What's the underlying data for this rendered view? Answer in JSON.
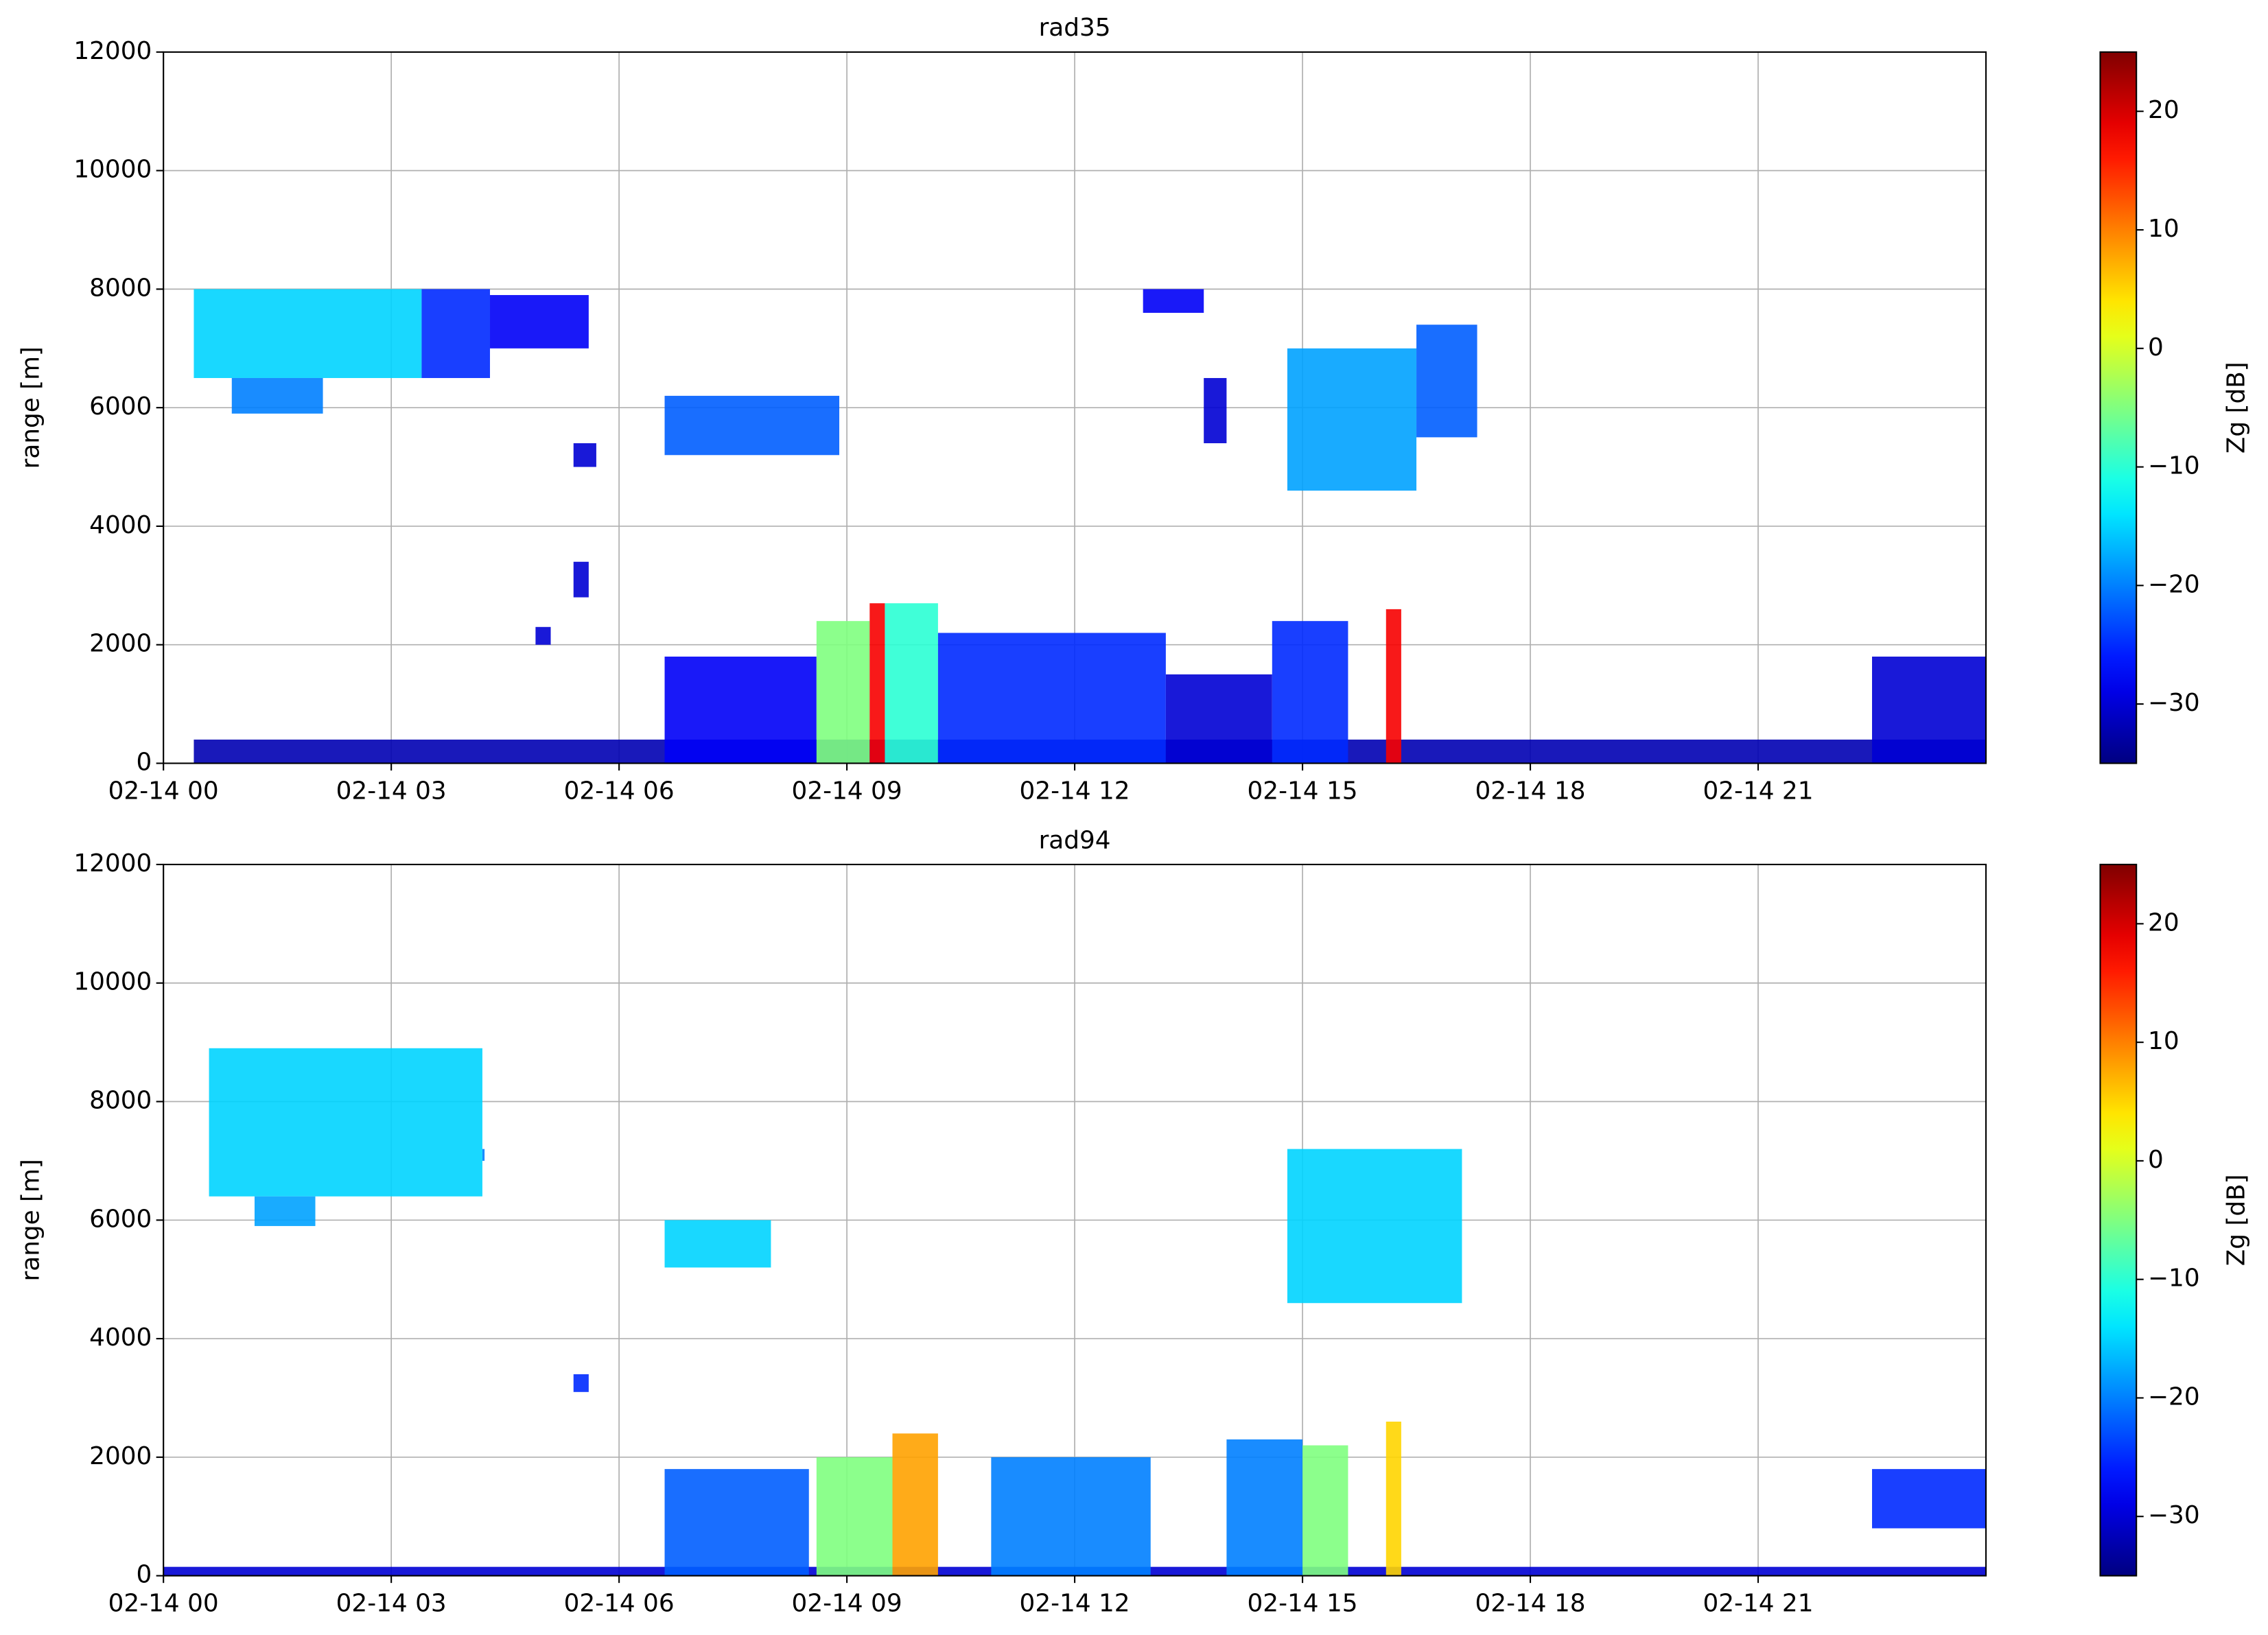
{
  "chart_data": [
    {
      "type": "heatmap",
      "title": "rad35",
      "ylabel": "range [m]",
      "colorbar_label": "Zg [dB]",
      "colormap": "jet",
      "grid": true,
      "xlim": [
        0,
        24
      ],
      "xticks": [
        {
          "value": 0,
          "label": "02-14 00"
        },
        {
          "value": 3,
          "label": "02-14 03"
        },
        {
          "value": 6,
          "label": "02-14 06"
        },
        {
          "value": 9,
          "label": "02-14 09"
        },
        {
          "value": 12,
          "label": "02-14 12"
        },
        {
          "value": 15,
          "label": "02-14 15"
        },
        {
          "value": 18,
          "label": "02-14 18"
        },
        {
          "value": 21,
          "label": "02-14 21"
        }
      ],
      "ylim": [
        0,
        12000
      ],
      "yticks": [
        0,
        2000,
        4000,
        6000,
        8000,
        10000,
        12000
      ],
      "clim": [
        -35,
        25
      ],
      "cticks": [
        {
          "value": -30,
          "label": "−30"
        },
        {
          "value": -20,
          "label": "−20"
        },
        {
          "value": -10,
          "label": "−10"
        },
        0,
        10,
        20
      ],
      "cells": [
        [
          0.4,
          24,
          0,
          400,
          -32
        ],
        [
          0.4,
          3.4,
          6500,
          8000,
          -15
        ],
        [
          0.9,
          2.1,
          5900,
          6500,
          -20
        ],
        [
          3.4,
          4.3,
          6500,
          8000,
          -25
        ],
        [
          4.3,
          5.6,
          7000,
          7900,
          -28
        ],
        [
          5.4,
          5.7,
          5000,
          5400,
          -30
        ],
        [
          5.4,
          5.6,
          2800,
          3400,
          -30
        ],
        [
          4.9,
          5.1,
          2000,
          2300,
          -30
        ],
        [
          6.6,
          8.9,
          5200,
          6200,
          -22
        ],
        [
          6.6,
          8.6,
          0,
          1800,
          -28
        ],
        [
          8.6,
          9.3,
          0,
          2400,
          -5
        ],
        [
          9.3,
          9.5,
          0,
          2700,
          18
        ],
        [
          9.5,
          10.2,
          0,
          2700,
          -10
        ],
        [
          10.2,
          13.2,
          0,
          2200,
          -25
        ],
        [
          13.2,
          14.6,
          0,
          1500,
          -30
        ],
        [
          14.6,
          15.6,
          0,
          2400,
          -25
        ],
        [
          16.1,
          16.3,
          0,
          2600,
          18
        ],
        [
          12.9,
          13.7,
          7600,
          8000,
          -28
        ],
        [
          13.7,
          14.0,
          5400,
          6500,
          -30
        ],
        [
          14.8,
          16.5,
          4600,
          7000,
          -18
        ],
        [
          16.5,
          17.3,
          5500,
          7400,
          -22
        ],
        [
          22.5,
          24,
          0,
          1800,
          -30
        ]
      ]
    },
    {
      "type": "heatmap",
      "title": "rad94",
      "ylabel": "range [m]",
      "colorbar_label": "Zg [dB]",
      "colormap": "jet",
      "grid": true,
      "xlim": [
        0,
        24
      ],
      "xticks": [
        {
          "value": 0,
          "label": "02-14 00"
        },
        {
          "value": 3,
          "label": "02-14 03"
        },
        {
          "value": 6,
          "label": "02-14 06"
        },
        {
          "value": 9,
          "label": "02-14 09"
        },
        {
          "value": 12,
          "label": "02-14 12"
        },
        {
          "value": 15,
          "label": "02-14 15"
        },
        {
          "value": 18,
          "label": "02-14 18"
        },
        {
          "value": 21,
          "label": "02-14 21"
        }
      ],
      "ylim": [
        0,
        12000
      ],
      "yticks": [
        0,
        2000,
        4000,
        6000,
        8000,
        10000,
        12000
      ],
      "clim": [
        -35,
        25
      ],
      "cticks": [
        {
          "value": -30,
          "label": "−30"
        },
        {
          "value": -20,
          "label": "−20"
        },
        {
          "value": -10,
          "label": "−10"
        },
        0,
        10,
        20
      ],
      "cells": [
        [
          0,
          24,
          0,
          150,
          -30
        ],
        [
          0.6,
          4.2,
          6400,
          8900,
          -15
        ],
        [
          1.2,
          2.0,
          5900,
          6400,
          -18
        ],
        [
          4.2,
          4.2,
          7000,
          7200,
          -20
        ],
        [
          6.6,
          8.0,
          5200,
          6000,
          -15
        ],
        [
          5.4,
          5.6,
          3100,
          3400,
          -25
        ],
        [
          6.6,
          8.5,
          0,
          1800,
          -22
        ],
        [
          8.6,
          9.6,
          0,
          2000,
          -5
        ],
        [
          9.6,
          10.2,
          0,
          2400,
          8
        ],
        [
          10.9,
          13.0,
          0,
          2000,
          -20
        ],
        [
          14.0,
          15.0,
          0,
          2300,
          -20
        ],
        [
          15.0,
          15.6,
          0,
          2200,
          -5
        ],
        [
          16.1,
          16.3,
          0,
          2600,
          5
        ],
        [
          14.8,
          17.1,
          4600,
          7200,
          -15
        ],
        [
          22.5,
          24,
          800,
          1800,
          -25
        ]
      ]
    }
  ]
}
